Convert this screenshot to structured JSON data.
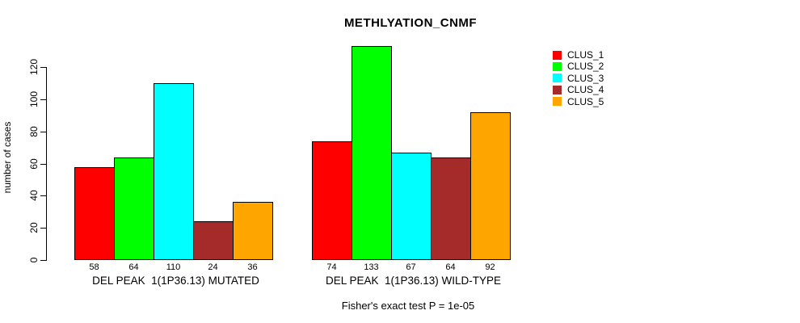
{
  "chart_data": {
    "type": "bar",
    "grouped": true,
    "title": "METHLYATION_CNMF",
    "xlabel": "",
    "ylabel": "number of cases",
    "categories": [
      "DEL PEAK  1(1P36.13) MUTATED",
      "DEL PEAK  1(1P36.13) WILD-TYPE"
    ],
    "series": [
      {
        "name": "CLUS_1",
        "color": "#FF0000",
        "values": [
          58,
          74
        ]
      },
      {
        "name": "CLUS_2",
        "color": "#00FF00",
        "values": [
          64,
          133
        ]
      },
      {
        "name": "CLUS_3",
        "color": "#00FFFF",
        "values": [
          110,
          67
        ]
      },
      {
        "name": "CLUS_4",
        "color": "#A52A2A",
        "values": [
          24,
          64
        ]
      },
      {
        "name": "CLUS_5",
        "color": "#FFA500",
        "values": [
          36,
          92
        ]
      }
    ],
    "bar_value_labels": [
      [
        58,
        64,
        110,
        24,
        36
      ],
      [
        74,
        133,
        67,
        64,
        92
      ]
    ],
    "ylim": [
      0,
      120
    ],
    "yticks": [
      0,
      20,
      40,
      60,
      80,
      100,
      120
    ],
    "grid": false,
    "bar_border_color": "#000000",
    "legend_position": "top-right",
    "annotation": "Fisher's exact test P = 1e-05",
    "background_color": "#FFFFFF",
    "text_color": "#000000"
  }
}
